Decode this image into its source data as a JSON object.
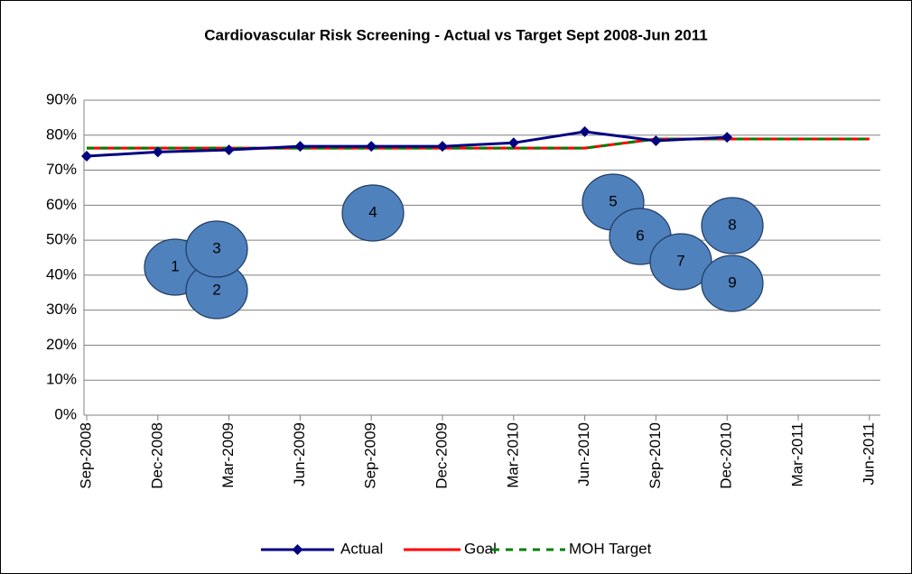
{
  "chart_data": {
    "type": "line",
    "title": "Cardiovascular Risk Screening - Actual vs Target Sept 2008-Jun 2011",
    "categories": [
      "Sep-2008",
      "Dec-2008",
      "Mar-2009",
      "Jun-2009",
      "Sep-2009",
      "Dec-2009",
      "Mar-2010",
      "Jun-2010",
      "Sep-2010",
      "Dec-2010",
      "Mar-2011",
      "Jun-2011"
    ],
    "series": [
      {
        "name": "Actual",
        "color": "#000080",
        "values": [
          74,
          75.2,
          75.8,
          76.8,
          76.8,
          76.8,
          77.8,
          81,
          78.4,
          79.4,
          null,
          null
        ]
      },
      {
        "name": "Goal",
        "color": "#ff0000",
        "values": [
          76.3,
          76.3,
          76.3,
          76.3,
          76.3,
          76.3,
          76.3,
          76.3,
          78.9,
          78.9,
          78.9,
          78.9
        ]
      },
      {
        "name": "MOH Target",
        "color": "#008000",
        "values": [
          76.3,
          76.3,
          76.3,
          76.3,
          76.3,
          76.3,
          76.3,
          76.3,
          78.9,
          78.9,
          78.9,
          78.9
        ]
      }
    ],
    "ylim": [
      0,
      90
    ],
    "yticks": [
      {
        "value": 0,
        "label": "0%"
      },
      {
        "value": 10,
        "label": "10%"
      },
      {
        "value": 20,
        "label": "20%"
      },
      {
        "value": 30,
        "label": "30%"
      },
      {
        "value": 40,
        "label": "40%"
      },
      {
        "value": 50,
        "label": "50%"
      },
      {
        "value": 60,
        "label": "60%"
      },
      {
        "value": 70,
        "label": "70%"
      },
      {
        "value": 80,
        "label": "80%"
      },
      {
        "value": 90,
        "label": "90%"
      }
    ],
    "grid": true,
    "legend": "bottom",
    "annotations": [
      "1",
      "2",
      "3",
      "4",
      "5",
      "6",
      "7",
      "8",
      "9"
    ]
  }
}
